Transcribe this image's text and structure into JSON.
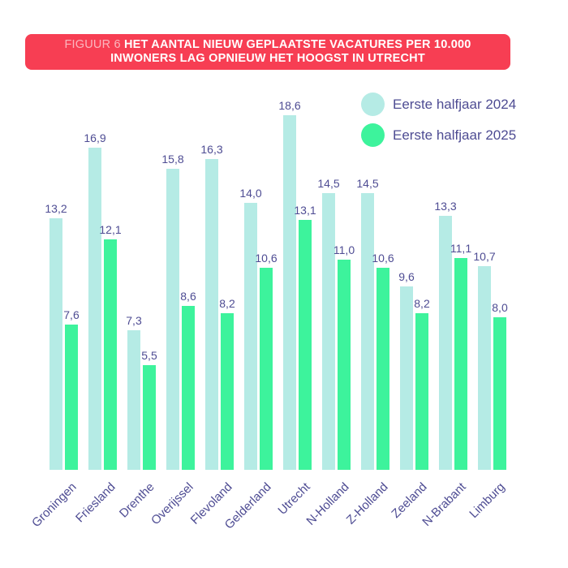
{
  "header": {
    "figure_label": "FIGUUR 6",
    "title_line1": "HET AANTAL NIEUW GEPLAATSTE VACATURES PER 10.000",
    "title_line2": "INWONERS LAG OPNIEUW HET HOOGST IN UTRECHT",
    "background_color": "#f73e53",
    "text_color": "#ffffff"
  },
  "legend": {
    "items": [
      {
        "label": "Eerste halfjaar 2024",
        "color": "#b5ebe5"
      },
      {
        "label": "Eerste halfjaar 2025",
        "color": "#3df39c"
      }
    ]
  },
  "colors": {
    "series_2024": "#b5ebe5",
    "series_2025": "#3df39c",
    "text_indigo": "#4e4c93",
    "header_red": "#f73e53"
  },
  "chart_data": {
    "type": "bar",
    "title": "FIGUUR 6 HET AANTAL NIEUW GEPLAATSTE VACATURES PER 10.000 INWONERS LAG OPNIEUW HET HOOGST IN UTRECHT",
    "categories": [
      "Groningen",
      "Friesland",
      "Drenthe",
      "Overijssel",
      "Flevoland",
      "Gelderland",
      "Utrecht",
      "N-Holland",
      "Z-Holland",
      "Zeeland",
      "N-Brabant",
      "Limburg"
    ],
    "series": [
      {
        "name": "Eerste halfjaar 2024",
        "color": "#b5ebe5",
        "values": [
          13.2,
          16.9,
          7.3,
          15.8,
          16.3,
          14.0,
          18.6,
          14.5,
          14.5,
          9.6,
          13.3,
          10.7
        ],
        "labels": [
          "13,2",
          "16,9",
          "7,3",
          "15,8",
          "16,3",
          "14,0",
          "18,6",
          "14,5",
          "14,5",
          "9,6",
          "13,3",
          "10,7"
        ]
      },
      {
        "name": "Eerste halfjaar 2025",
        "color": "#3df39c",
        "values": [
          7.6,
          12.1,
          5.5,
          8.6,
          8.2,
          10.6,
          13.1,
          11.0,
          10.6,
          8.2,
          11.1,
          8.0
        ],
        "labels": [
          "7,6",
          "12,1",
          "5,5",
          "8,6",
          "8,2",
          "10,6",
          "13,1",
          "11,0",
          "10,6",
          "8,2",
          "11,1",
          "8,0"
        ]
      }
    ],
    "xlabel": "",
    "ylabel": "",
    "ylim": [
      0,
      20
    ],
    "grid": false,
    "value_labels_shown": true,
    "decimal_separator": "comma",
    "legend_position": "top-right",
    "x_tick_rotation_deg": 45
  }
}
